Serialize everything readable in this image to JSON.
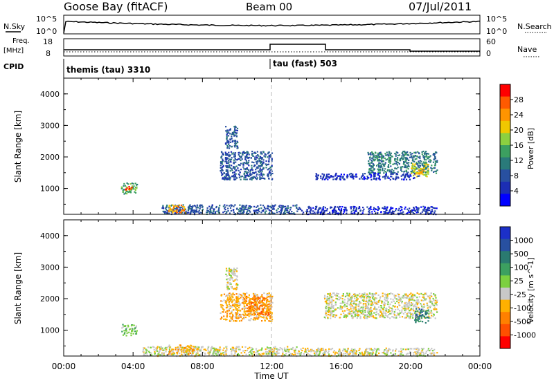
{
  "header": {
    "station": "Goose Bay (fitACF)",
    "beam": "Beam 00",
    "date": "07/Jul/2011"
  },
  "meta_panel": {
    "nsky_label": "N.Sky",
    "nsky_ticks": [
      "10^5",
      "10^0"
    ],
    "nsearch_label": "N.Search",
    "nsearch_ticks": [
      "10^5",
      "10^0"
    ],
    "freq_label_1": "Freq.",
    "freq_label_2": "[MHz]",
    "freq_ticks": [
      "18",
      "8"
    ],
    "nave_label": "Nave",
    "nave_ticks": [
      "60",
      "0"
    ],
    "cpid_label": "CPID",
    "cpid_entries": [
      {
        "text": "themis (tau) 3310",
        "start_hour": 0
      },
      {
        "text": "tau (fast) 503",
        "start_hour": 12
      }
    ]
  },
  "chart_data": [
    {
      "type": "heatmap",
      "name": "power",
      "xlabel": "Time UT",
      "ylabel": "Slant Range [km]",
      "xlim": [
        0,
        24
      ],
      "ylim": [
        180,
        4500
      ],
      "yticks": [
        1000,
        2000,
        3000,
        4000
      ],
      "ytick_labels": [
        "1000",
        "2000",
        "3000",
        "4000"
      ],
      "colorbar_label": "Power [dB]",
      "colorbar_ticks": [
        "28",
        "24",
        "20",
        "16",
        "12",
        "8",
        "4"
      ],
      "colorbar_colors": [
        "#ff0000",
        "#ff5a00",
        "#ff9400",
        "#f0c800",
        "#8cd040",
        "#3ca060",
        "#2a7a7a",
        "#2850a0",
        "#1c2eb4",
        "#0000ff"
      ],
      "patches": [
        {
          "t0": 3.3,
          "t1": 4.2,
          "r0": 850,
          "r1": 1200,
          "level": 5
        },
        {
          "t0": 3.5,
          "t1": 4.0,
          "r0": 950,
          "r1": 1100,
          "level": 1
        },
        {
          "t0": 9.3,
          "t1": 10.0,
          "r0": 2300,
          "r1": 3000,
          "level": 7
        },
        {
          "t0": 9.0,
          "t1": 12.0,
          "r0": 1300,
          "r1": 2200,
          "level": 7
        },
        {
          "t0": 17.5,
          "t1": 21.5,
          "r0": 1500,
          "r1": 2200,
          "level": 6
        },
        {
          "t0": 20.0,
          "t1": 21.0,
          "r0": 1400,
          "r1": 1800,
          "level": 3
        },
        {
          "t0": 14.5,
          "t1": 20.5,
          "r0": 1300,
          "r1": 1500,
          "level": 8
        },
        {
          "t0": 5.5,
          "t1": 13.5,
          "r0": 200,
          "r1": 500,
          "level": 7
        },
        {
          "t0": 6.0,
          "t1": 7.0,
          "r0": 250,
          "r1": 500,
          "level": 2
        },
        {
          "t0": 13.5,
          "t1": 21.5,
          "r0": 200,
          "r1": 450,
          "level": 8
        }
      ]
    },
    {
      "type": "heatmap",
      "name": "velocity",
      "xlabel": "Time UT",
      "ylabel": "Slant Range [km]",
      "xlim": [
        0,
        24
      ],
      "ylim": [
        180,
        4500
      ],
      "yticks": [
        1000,
        2000,
        3000,
        4000
      ],
      "ytick_labels": [
        "1000",
        "2000",
        "3000",
        "4000"
      ],
      "xticks": [
        0,
        4,
        8,
        12,
        16,
        20,
        24
      ],
      "xtick_labels": [
        "00:00",
        "04:00",
        "08:00",
        "12:00",
        "16:00",
        "20:00",
        "00:00"
      ],
      "colorbar_label": "Velocity [m s^-1]",
      "colorbar_ticks": [
        "1000",
        "500",
        "100",
        "25",
        "-25",
        "-100",
        "-500",
        "-1000"
      ],
      "colorbar_colors": [
        "#1c30c8",
        "#2850a0",
        "#2a7a70",
        "#3ca060",
        "#7cd040",
        "#c8c8c8",
        "#ffb000",
        "#ff8000",
        "#ff5000",
        "#ff0000"
      ],
      "patches": [
        {
          "t0": 3.3,
          "t1": 4.2,
          "r0": 850,
          "r1": 1200,
          "level": 4
        },
        {
          "t0": 9.3,
          "t1": 10.0,
          "r0": 2300,
          "r1": 3000,
          "level": 5
        },
        {
          "t0": 9.0,
          "t1": 12.0,
          "r0": 1300,
          "r1": 2200,
          "level": 6
        },
        {
          "t0": 10.5,
          "t1": 11.8,
          "r0": 1500,
          "r1": 2100,
          "level": 7
        },
        {
          "t0": 15.0,
          "t1": 21.5,
          "r0": 1400,
          "r1": 2200,
          "level": 5
        },
        {
          "t0": 20.2,
          "t1": 21.0,
          "r0": 1250,
          "r1": 1700,
          "level": 2
        },
        {
          "t0": 4.5,
          "t1": 13.5,
          "r0": 200,
          "r1": 500,
          "level": 5
        },
        {
          "t0": 6.0,
          "t1": 7.5,
          "r0": 250,
          "r1": 550,
          "level": 6
        },
        {
          "t0": 13.5,
          "t1": 21.5,
          "r0": 200,
          "r1": 450,
          "level": 5
        }
      ]
    }
  ]
}
